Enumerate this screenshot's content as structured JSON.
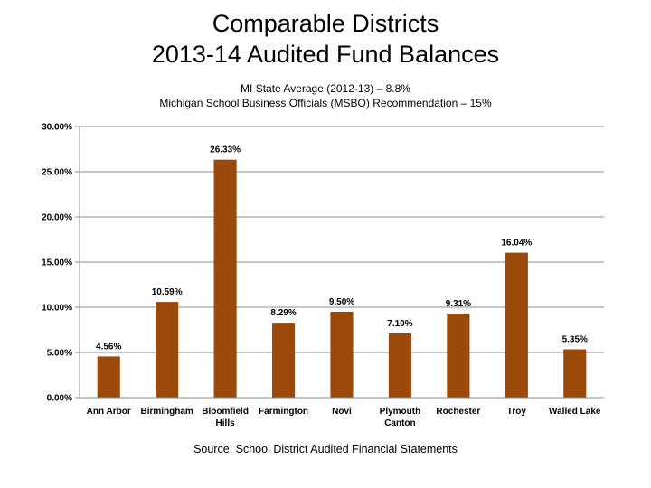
{
  "title_line1": "Comparable Districts",
  "title_line2": "2013-14 Audited Fund Balances",
  "subtitle_line1": "MI State Average (2012-13) – 8.8%",
  "subtitle_line2": "Michigan School Business Officials (MSBO) Recommendation – 15%",
  "source": "Source: School District Audited Financial Statements",
  "colors": {
    "bar": "#9B4A0C",
    "grid": "#8c8c8c"
  },
  "chart_data": {
    "type": "bar",
    "title": "Comparable Districts 2013-14 Audited Fund Balances",
    "categories": [
      [
        "Ann Arbor"
      ],
      [
        "Birmingham"
      ],
      [
        "Bloomfield",
        "Hills"
      ],
      [
        "Farmington"
      ],
      [
        "Novi"
      ],
      [
        "Plymouth",
        "Canton"
      ],
      [
        "Rochester"
      ],
      [
        "Troy"
      ],
      [
        "Walled Lake"
      ]
    ],
    "values": [
      4.56,
      10.59,
      26.33,
      8.29,
      9.5,
      7.1,
      9.31,
      16.04,
      5.35
    ],
    "data_labels": [
      "4.56%",
      "10.59%",
      "26.33%",
      "8.29%",
      "9.50%",
      "7.10%",
      "9.31%",
      "16.04%",
      "5.35%"
    ],
    "ylim": [
      0,
      30
    ],
    "yticks": [
      0,
      5,
      10,
      15,
      20,
      25,
      30
    ],
    "ytick_labels": [
      "0.00%",
      "5.00%",
      "10.00%",
      "15.00%",
      "20.00%",
      "25.00%",
      "30.00%"
    ],
    "grid": true,
    "legend": "none"
  }
}
